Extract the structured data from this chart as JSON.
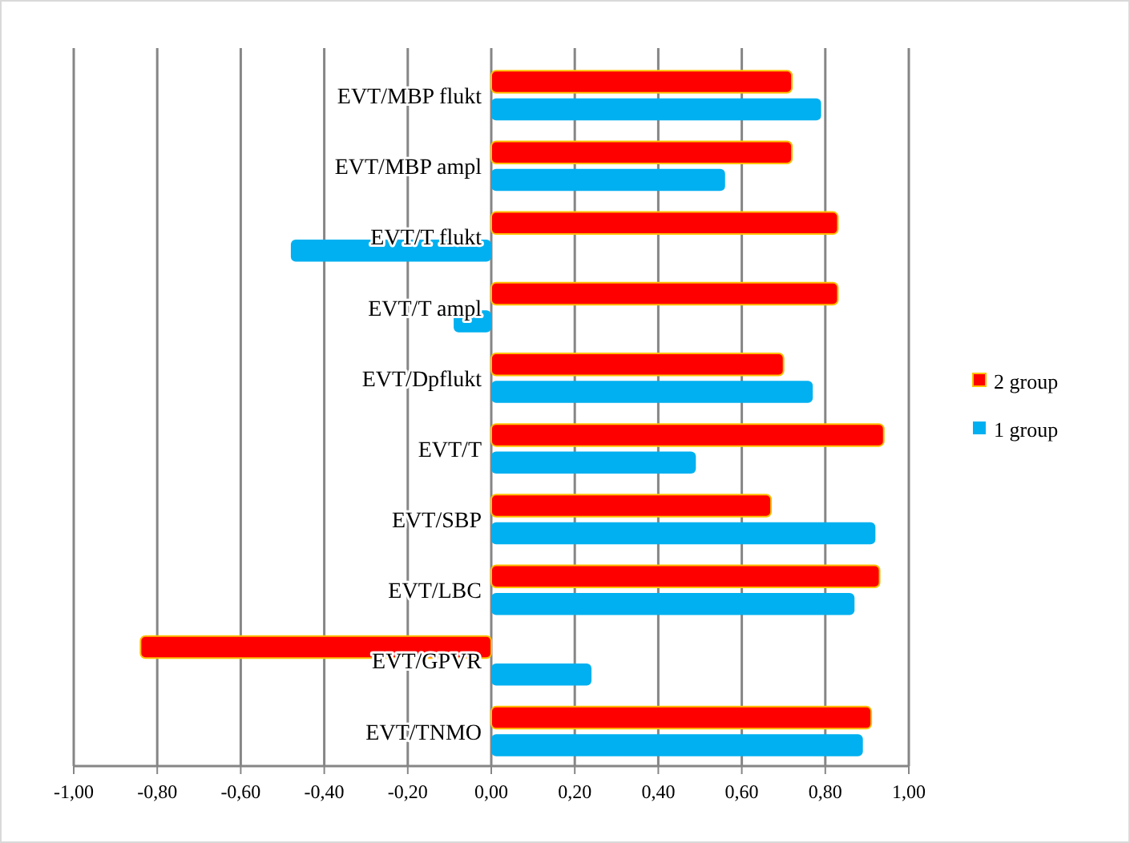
{
  "chart_data": {
    "type": "bar",
    "orientation": "horizontal",
    "categories": [
      "EVT/MBP flukt",
      "EVT/MBP ampl",
      "EVT/T flukt",
      "EVT/T ampl",
      "EVT/Dpflukt",
      "EVT/T",
      "EVT/SBP",
      "EVT/LBC",
      "EVT/GPVR",
      "EVT/TNMO"
    ],
    "series": [
      {
        "name": "2 group",
        "color": "#ff0000",
        "values": [
          0.72,
          0.72,
          0.83,
          0.83,
          0.7,
          0.94,
          0.67,
          0.93,
          -0.84,
          0.91
        ]
      },
      {
        "name": "1 group",
        "color": "#00b0f0",
        "values": [
          0.79,
          0.56,
          -0.48,
          -0.09,
          0.77,
          0.49,
          0.92,
          0.87,
          0.24,
          0.89
        ]
      }
    ],
    "xlim": [
      -1,
      1
    ],
    "xticks": [
      {
        "value": -1,
        "label": "-1,00"
      },
      {
        "value": -0.8,
        "label": "-0,80"
      },
      {
        "value": -0.6,
        "label": "-0,60"
      },
      {
        "value": -0.4,
        "label": "-0,40"
      },
      {
        "value": -0.2,
        "label": "-0,20"
      },
      {
        "value": 0,
        "label": "0,00"
      },
      {
        "value": 0.2,
        "label": "0,20"
      },
      {
        "value": 0.4,
        "label": "0,40"
      },
      {
        "value": 0.6,
        "label": "0,60"
      },
      {
        "value": 0.8,
        "label": "0,80"
      },
      {
        "value": 1,
        "label": "1,00"
      }
    ],
    "grid": "x",
    "legend": "right"
  }
}
